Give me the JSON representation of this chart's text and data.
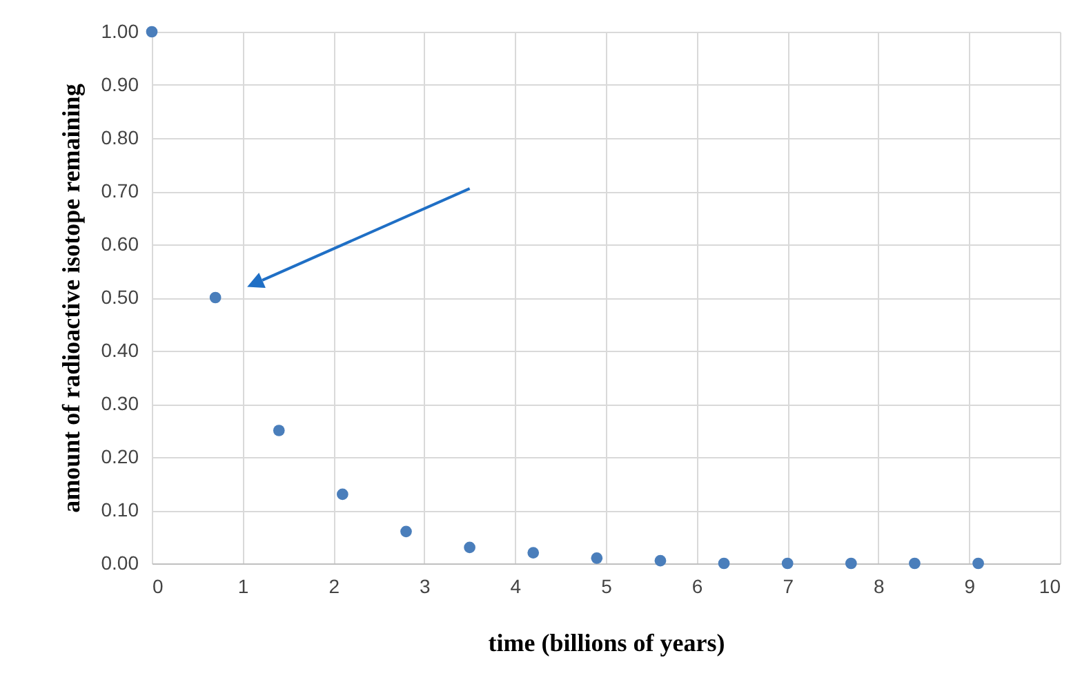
{
  "chart_data": {
    "type": "scatter",
    "xlabel": "time (billions of years)",
    "ylabel": "amount of radioactive isotope remaining",
    "x": [
      0,
      0.7,
      1.4,
      2.1,
      2.8,
      3.5,
      4.2,
      4.9,
      5.6,
      6.3,
      7.0,
      7.7,
      8.4,
      9.1
    ],
    "series": [
      {
        "color": "#4a7ebb",
        "values": [
          1.0,
          0.5,
          0.25,
          0.13,
          0.06,
          0.03,
          0.02,
          0.01,
          0.005,
          0,
          0,
          0,
          0,
          0
        ]
      }
    ],
    "xlim": [
      0,
      10
    ],
    "xticks": [
      0,
      1,
      2,
      3,
      4,
      5,
      6,
      7,
      8,
      9,
      10
    ],
    "ylim": [
      0,
      1
    ],
    "yticks": [
      {
        "value": 0,
        "label": "0.00"
      },
      {
        "value": 0.1,
        "label": "0.10"
      },
      {
        "value": 0.2,
        "label": "0.20"
      },
      {
        "value": 0.3,
        "label": "0.30"
      },
      {
        "value": 0.4,
        "label": "0.40"
      },
      {
        "value": 0.5,
        "label": "0.50"
      },
      {
        "value": 0.6,
        "label": "0.60"
      },
      {
        "value": 0.7,
        "label": "0.70"
      },
      {
        "value": 0.8,
        "label": "0.80"
      },
      {
        "value": 0.9,
        "label": "0.90"
      },
      {
        "value": 1,
        "label": "1.00"
      }
    ],
    "grid": true,
    "marker": "circle",
    "legend": false
  }
}
